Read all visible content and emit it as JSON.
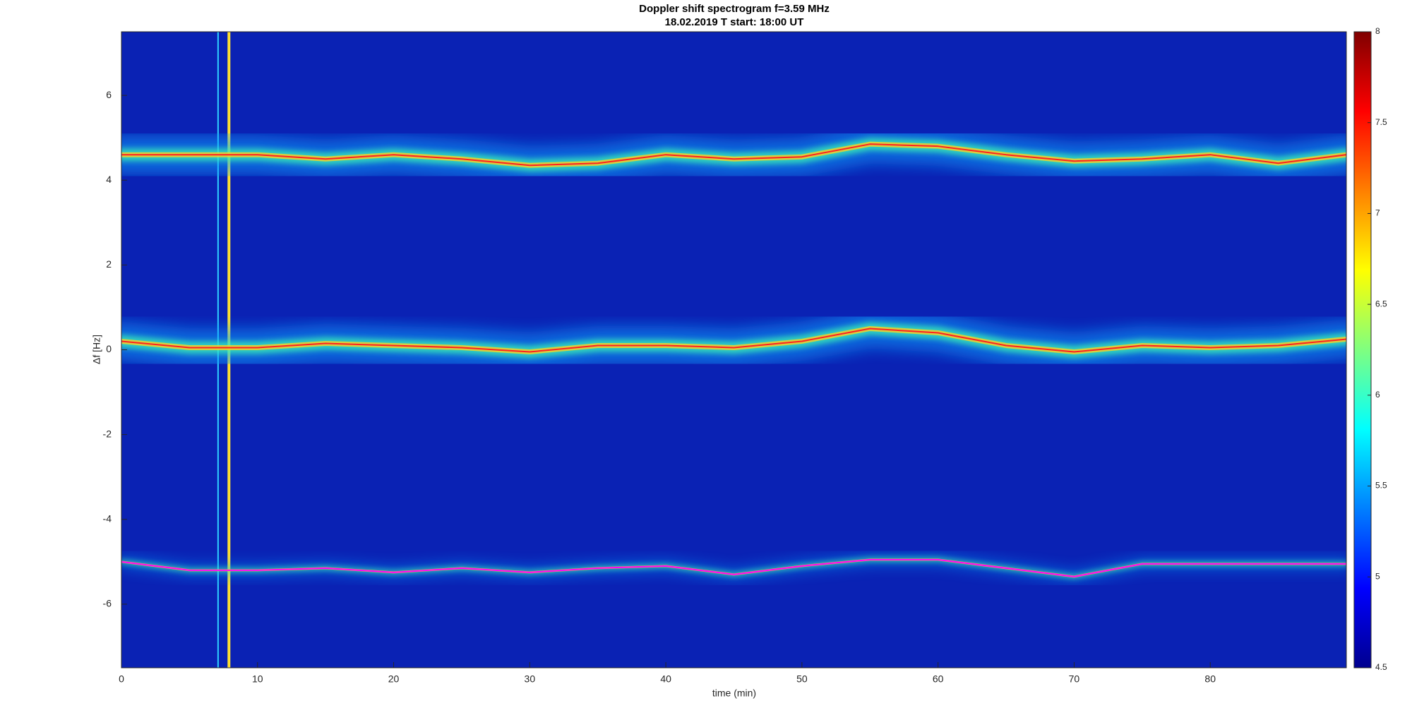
{
  "chart_data": {
    "type": "spectrogram",
    "title": "Doppler shift spectrogram f=3.59 MHz",
    "subtitle": "18.02.2019   T start: 18:00 UT",
    "x_label": "time (min)",
    "y_label": "Δf [Hz]",
    "xlim": [
      0,
      90
    ],
    "xticks": [
      0,
      10,
      20,
      30,
      40,
      50,
      60,
      70,
      80
    ],
    "ylim": [
      -7.5,
      7.5
    ],
    "yticks": [
      -6,
      -4,
      -2,
      0,
      2,
      4,
      6
    ],
    "clim": [
      4.5,
      8
    ],
    "cticks": [
      4.5,
      5,
      5.5,
      6,
      6.5,
      7,
      7.5,
      8
    ],
    "colormap": "jet",
    "x": [
      0,
      5,
      10,
      15,
      20,
      25,
      30,
      35,
      40,
      45,
      50,
      55,
      60,
      65,
      70,
      75,
      80,
      85,
      90
    ],
    "series": [
      {
        "color": "#ff2020",
        "values": [
          4.6,
          4.6,
          4.6,
          4.5,
          4.6,
          4.5,
          4.35,
          4.4,
          4.6,
          4.5,
          4.55,
          4.85,
          4.8,
          4.6,
          4.45,
          4.5,
          4.6,
          4.4,
          4.6
        ]
      },
      {
        "color": "#ff2020",
        "values": [
          0.2,
          0.05,
          0.05,
          0.15,
          0.1,
          0.05,
          -0.05,
          0.1,
          0.1,
          0.05,
          0.2,
          0.5,
          0.4,
          0.1,
          -0.05,
          0.1,
          0.05,
          0.1,
          0.25
        ]
      },
      {
        "color": "#ff00ff",
        "values": [
          -5.0,
          -5.2,
          -5.2,
          -5.15,
          -5.25,
          -5.15,
          -5.25,
          -5.15,
          -5.1,
          -5.3,
          -5.1,
          -4.95,
          -4.95,
          -5.15,
          -5.35,
          -5.05,
          -5.05,
          -5.05,
          -5.05
        ]
      }
    ],
    "vlines": [
      7.1,
      7.9
    ]
  }
}
